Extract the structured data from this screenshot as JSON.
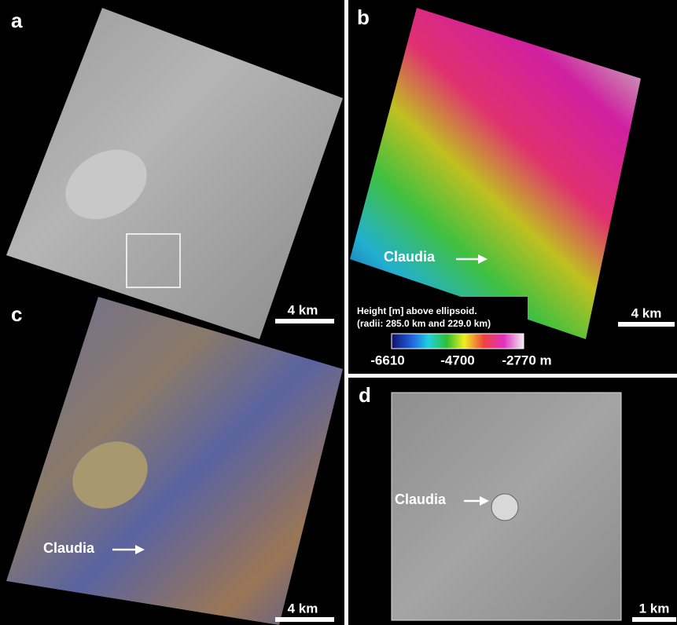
{
  "panels": [
    {
      "label": "a",
      "scale_bar": "4 km"
    },
    {
      "label": "b",
      "scale_bar": "4 km",
      "annotation": "Claudia",
      "colorbar": {
        "title": "Height [m] above ellipsoid.",
        "subtitle": "(radii: 285.0 km and 229.0 km)",
        "ticks": [
          "-6610",
          "-4700",
          "-2770 m"
        ]
      }
    },
    {
      "label": "c",
      "scale_bar": "4 km",
      "annotation": "Claudia"
    },
    {
      "label": "d",
      "scale_bar": "1 km",
      "annotation": "Claudia"
    }
  ]
}
